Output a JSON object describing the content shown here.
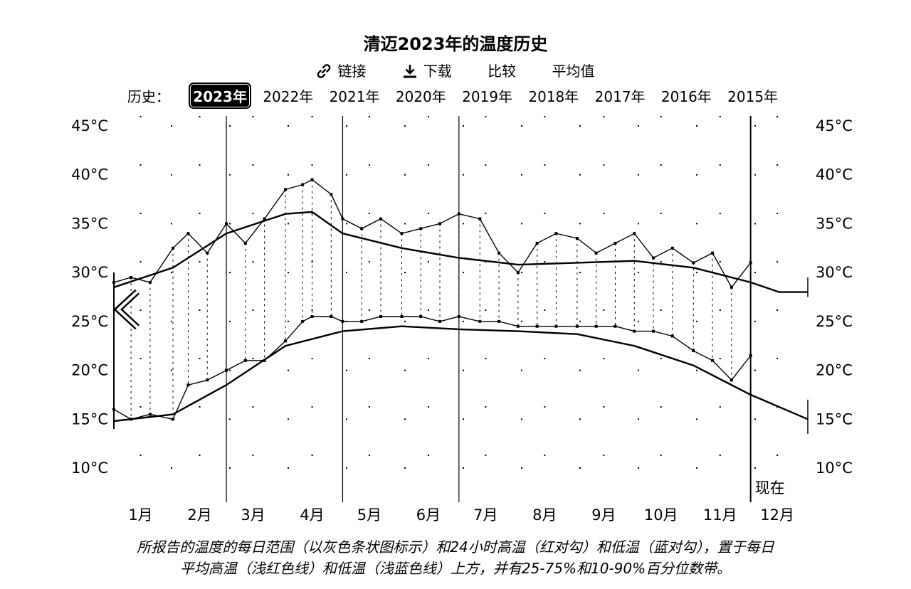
{
  "header": {
    "title": "清迈2023年的温度历史",
    "links": [
      {
        "icon": "link-icon",
        "label": "链接"
      },
      {
        "icon": "download-icon",
        "label": "下载"
      },
      {
        "icon": "",
        "label": "比较"
      },
      {
        "icon": "",
        "label": "平均值"
      }
    ]
  },
  "history": {
    "label": "历史：",
    "years": [
      "2023年",
      "2022年",
      "2021年",
      "2020年",
      "2019年",
      "2018年",
      "2017年",
      "2016年",
      "2015年"
    ],
    "active_index": 0
  },
  "nav": {
    "back_icon": "chevron-left-icon"
  },
  "caption": {
    "line1": "所报告的温度的每日范围（以灰色条状图标示）和24小时高温（红对勾）和低温（蓝对勾），置于每日",
    "line2": "平均高温（浅红色线）和低温（浅蓝色线）上方，并有25-75%和10-90%百分位数带。"
  },
  "chart_data": {
    "type": "line",
    "title": "清迈2023年的温度历史",
    "y_ticks": [
      "45°C",
      "40°C",
      "35°C",
      "30°C",
      "25°C",
      "20°C",
      "15°C",
      "10°C"
    ],
    "y_tick_values": [
      45,
      40,
      35,
      30,
      25,
      20,
      15,
      10
    ],
    "ylim": [
      7,
      47
    ],
    "x_ticks": [
      "1月",
      "2月",
      "3月",
      "4月",
      "5月",
      "6月",
      "7月",
      "8月",
      "9月",
      "10月",
      "11月",
      "12月"
    ],
    "xlim_day_of_year": [
      1,
      365
    ],
    "now_label": "现在",
    "now_day_of_year": 335,
    "month_divider_days": [
      60,
      121,
      182
    ],
    "grid": "dotted",
    "series": [
      {
        "name": "平均高温",
        "color": "#e8a0a0",
        "x": [
          1,
          32,
          60,
          91,
          105,
          121,
          152,
          182,
          213,
          244,
          274,
          305,
          335,
          350,
          365
        ],
        "values": [
          28.5,
          30.5,
          34.0,
          36.0,
          36.2,
          34.0,
          32.5,
          31.5,
          30.8,
          31.0,
          31.2,
          30.5,
          29.0,
          28.0,
          28.0
        ]
      },
      {
        "name": "平均低温",
        "color": "#a0b8e8",
        "x": [
          1,
          32,
          60,
          91,
          121,
          152,
          182,
          213,
          244,
          274,
          305,
          335,
          365
        ],
        "values": [
          14.8,
          15.5,
          18.5,
          22.5,
          24.0,
          24.5,
          24.2,
          24.0,
          23.7,
          22.5,
          20.5,
          17.5,
          15.0
        ]
      },
      {
        "name": "每日高温",
        "color": "#d04040",
        "x": [
          1,
          10,
          20,
          32,
          40,
          50,
          60,
          70,
          80,
          91,
          100,
          105,
          115,
          121,
          131,
          141,
          152,
          162,
          172,
          182,
          193,
          203,
          213,
          223,
          233,
          244,
          254,
          264,
          274,
          284,
          294,
          305,
          315,
          325,
          335
        ],
        "values": [
          29.0,
          29.5,
          29.0,
          32.5,
          34.0,
          32.0,
          35.0,
          33.0,
          35.5,
          38.5,
          39.0,
          39.5,
          38.0,
          35.5,
          34.5,
          35.5,
          34.0,
          34.5,
          35.0,
          36.0,
          35.5,
          32.0,
          30.0,
          33.0,
          34.0,
          33.5,
          32.0,
          33.0,
          34.0,
          31.5,
          32.5,
          31.0,
          32.0,
          28.5,
          31.0
        ]
      },
      {
        "name": "每日低温",
        "color": "#4060d0",
        "x": [
          1,
          10,
          20,
          32,
          40,
          50,
          60,
          70,
          80,
          91,
          100,
          105,
          115,
          121,
          131,
          141,
          152,
          162,
          172,
          182,
          193,
          203,
          213,
          223,
          233,
          244,
          254,
          264,
          274,
          284,
          294,
          305,
          315,
          325,
          335
        ],
        "values": [
          16.0,
          15.0,
          15.5,
          15.0,
          18.5,
          19.0,
          20.0,
          21.0,
          21.0,
          23.0,
          25.0,
          25.5,
          25.5,
          25.0,
          25.0,
          25.5,
          25.5,
          25.5,
          25.0,
          25.5,
          25.0,
          25.0,
          24.5,
          24.5,
          24.5,
          24.5,
          24.5,
          24.5,
          24.0,
          24.0,
          23.5,
          22.0,
          21.0,
          19.0,
          21.5
        ]
      }
    ]
  }
}
